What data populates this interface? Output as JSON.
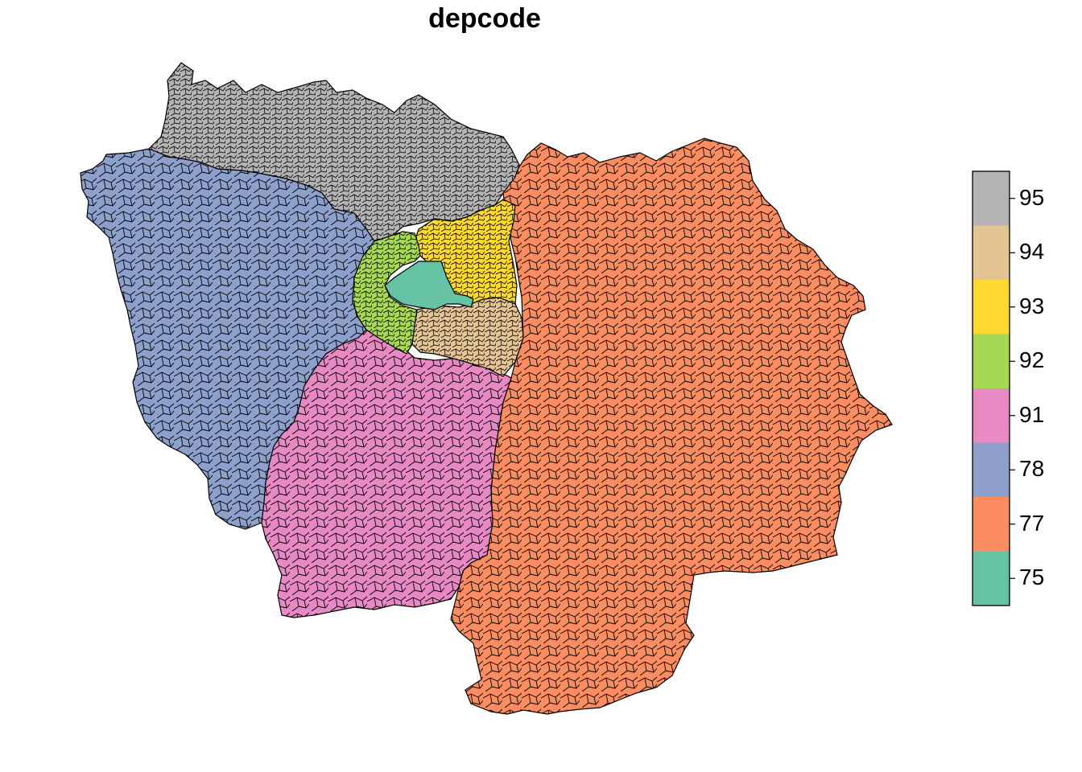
{
  "title": "depcode",
  "legend": {
    "items": [
      {
        "label": "95",
        "color": "#B3B3B3"
      },
      {
        "label": "94",
        "color": "#E5C494"
      },
      {
        "label": "93",
        "color": "#FFD92F"
      },
      {
        "label": "92",
        "color": "#A6D854"
      },
      {
        "label": "91",
        "color": "#E78AC3"
      },
      {
        "label": "78",
        "color": "#8DA0CB"
      },
      {
        "label": "77",
        "color": "#FC8D62"
      },
      {
        "label": "75",
        "color": "#66C2A5"
      }
    ]
  },
  "regions": [
    {
      "code": "95",
      "color": "#B3B3B3"
    },
    {
      "code": "78",
      "color": "#8DA0CB"
    },
    {
      "code": "91",
      "color": "#E78AC3"
    },
    {
      "code": "77",
      "color": "#FC8D62"
    },
    {
      "code": "94",
      "color": "#E5C494"
    },
    {
      "code": "93",
      "color": "#FFD92F"
    },
    {
      "code": "92",
      "color": "#A6D854"
    },
    {
      "code": "75",
      "color": "#66C2A5"
    }
  ]
}
